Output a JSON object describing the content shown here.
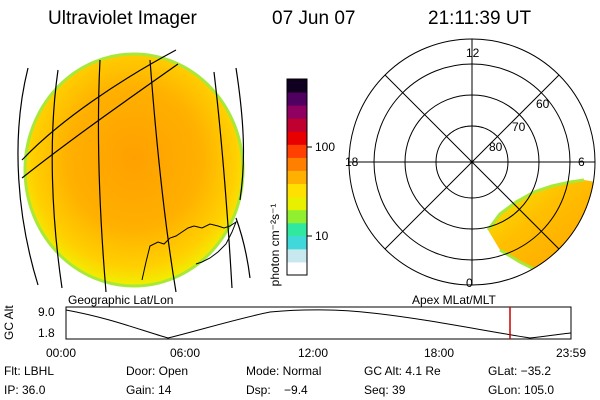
{
  "header": {
    "instrument": "Ultraviolet Imager",
    "date": "07 Jun 07",
    "time": "21:11:39 UT"
  },
  "left_panel": {
    "caption": "Geographic Lat/Lon"
  },
  "right_panel": {
    "caption": "Apex  MLat/MLT",
    "mlt_labels": {
      "top": "12",
      "left": "18",
      "right": "6",
      "bottom": "0"
    },
    "lat_labels": [
      "60",
      "70",
      "80"
    ]
  },
  "colorbar": {
    "unit_label": "photon cm⁻²s⁻¹",
    "ticks": [
      "100",
      "10"
    ],
    "colors": [
      "#ffffff",
      "#c8e8f0",
      "#40d8d8",
      "#30e8a0",
      "#90f030",
      "#e8f000",
      "#ffe000",
      "#ffb000",
      "#ff8000",
      "#ff4000",
      "#e80000",
      "#c00030",
      "#900060",
      "#500060",
      "#100020"
    ]
  },
  "timeline": {
    "ylabel": "GC Alt",
    "yticks": [
      "9.0",
      "1.8"
    ],
    "xticks": [
      "00:00",
      "06:00",
      "12:00",
      "18:00",
      "23:59"
    ],
    "current_marker_color": "#cc0000"
  },
  "footer": {
    "row1": {
      "flt": "Flt: LBHL",
      "door": "Door: Open",
      "mode": "Mode: Normal",
      "gcalt": "GC Alt: 4.1 Re",
      "glat": "GLat: −35.2"
    },
    "row2": {
      "ip": "IP: 36.0",
      "gain": "Gain: 14",
      "dsp": "Dsp:    −9.4",
      "seq": "Seq: 39",
      "glon": "GLon: 105.0"
    }
  }
}
